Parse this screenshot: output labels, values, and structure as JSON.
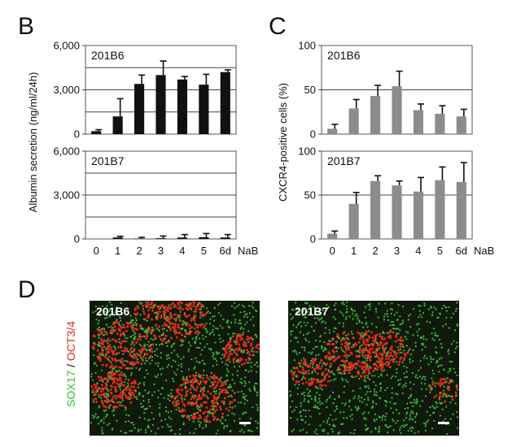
{
  "panels": {
    "b_letter": "B",
    "c_letter": "C",
    "d_letter": "D"
  },
  "chart_data": [
    {
      "type": "bar",
      "panel": "B",
      "ylabel": "Albumin secretion (ng/ml/24h)",
      "xlabel": "NaB",
      "categories": [
        "0",
        "1",
        "2",
        "3",
        "4",
        "5",
        "6d"
      ],
      "subplots": [
        {
          "name": "201B6",
          "ylim": [
            0,
            6000
          ],
          "yticks": [
            "0",
            "3,000",
            "6,000"
          ],
          "gridlines": [
            1500,
            3000,
            4500
          ],
          "values": [
            200,
            1200,
            3400,
            4000,
            3700,
            3350,
            4200
          ],
          "errors": [
            100,
            1200,
            600,
            950,
            200,
            700,
            150
          ],
          "color": "#111111"
        },
        {
          "name": "201B7",
          "ylim": [
            0,
            6000
          ],
          "yticks": [
            "0",
            "3,000",
            "6,000"
          ],
          "gridlines": [
            1500,
            3000,
            4500
          ],
          "values": [
            0,
            100,
            30,
            50,
            100,
            120,
            100
          ],
          "errors": [
            0,
            80,
            80,
            150,
            200,
            250,
            200
          ],
          "color": "#111111"
        }
      ]
    },
    {
      "type": "bar",
      "panel": "C",
      "ylabel": "CXCR4-positive cells (%)",
      "xlabel": "NaB",
      "categories": [
        "0",
        "1",
        "2",
        "3",
        "4",
        "5",
        "6d"
      ],
      "subplots": [
        {
          "name": "201B6",
          "ylim": [
            0,
            100
          ],
          "yticks": [
            "0",
            "50",
            "100"
          ],
          "gridlines": [
            50
          ],
          "values": [
            6,
            29,
            43,
            54,
            27,
            23,
            20
          ],
          "errors": [
            5,
            10,
            12,
            17,
            7,
            9,
            8
          ],
          "color": "#8c8c8c"
        },
        {
          "name": "201B7",
          "ylim": [
            0,
            100
          ],
          "yticks": [
            "0",
            "50",
            "100"
          ],
          "gridlines": [
            50
          ],
          "values": [
            6,
            40,
            66,
            61,
            54,
            67,
            65
          ],
          "errors": [
            3,
            13,
            6,
            5,
            16,
            15,
            22
          ],
          "color": "#8c8c8c"
        }
      ]
    }
  ],
  "micrographs": {
    "left_label": "201B6",
    "right_label": "201B7",
    "side_label_green": "SOX17",
    "side_label_sep": " / ",
    "side_label_red": "OCT3/4",
    "green_color": "#3cbd3c",
    "red_color": "#e0281e"
  }
}
